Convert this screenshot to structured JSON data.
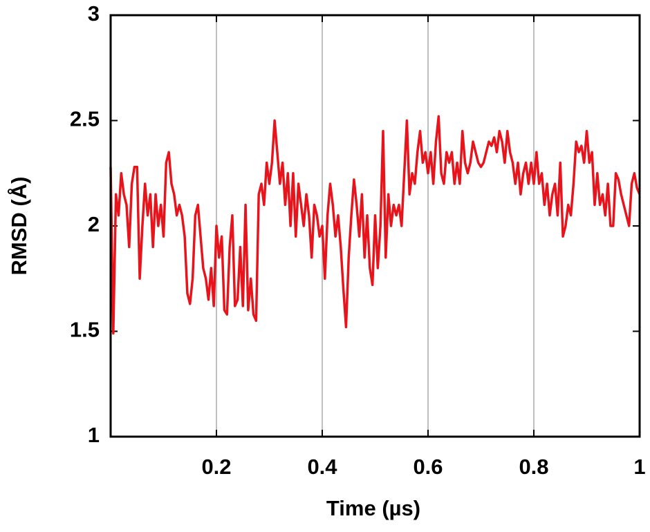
{
  "chart_data": {
    "type": "line",
    "x_label": "Time (µs)",
    "y_label": "RMSD (Å)",
    "xlim": [
      0,
      1
    ],
    "ylim": [
      1,
      3
    ],
    "xticks": [
      0.2,
      0.4,
      0.6,
      0.8,
      1
    ],
    "yticks": [
      1,
      1.5,
      2,
      2.5,
      3
    ],
    "grid": "x",
    "x": [
      0,
      0.005,
      0.01,
      0.015,
      0.02,
      0.025,
      0.03,
      0.035,
      0.04,
      0.045,
      0.05,
      0.055,
      0.06,
      0.065,
      0.07,
      0.075,
      0.08,
      0.085,
      0.09,
      0.095,
      0.1,
      0.105,
      0.11,
      0.115,
      0.12,
      0.125,
      0.13,
      0.135,
      0.14,
      0.145,
      0.15,
      0.155,
      0.16,
      0.165,
      0.17,
      0.175,
      0.18,
      0.185,
      0.19,
      0.195,
      0.2,
      0.205,
      0.21,
      0.215,
      0.22,
      0.225,
      0.23,
      0.235,
      0.24,
      0.245,
      0.25,
      0.255,
      0.26,
      0.265,
      0.27,
      0.275,
      0.28,
      0.285,
      0.29,
      0.295,
      0.3,
      0.305,
      0.31,
      0.315,
      0.32,
      0.325,
      0.33,
      0.335,
      0.34,
      0.345,
      0.35,
      0.355,
      0.36,
      0.365,
      0.37,
      0.375,
      0.38,
      0.385,
      0.39,
      0.395,
      0.4,
      0.405,
      0.41,
      0.415,
      0.42,
      0.425,
      0.43,
      0.435,
      0.44,
      0.445,
      0.45,
      0.455,
      0.46,
      0.465,
      0.47,
      0.475,
      0.48,
      0.485,
      0.49,
      0.495,
      0.5,
      0.505,
      0.51,
      0.515,
      0.52,
      0.525,
      0.53,
      0.535,
      0.54,
      0.545,
      0.55,
      0.555,
      0.56,
      0.565,
      0.57,
      0.575,
      0.58,
      0.585,
      0.59,
      0.595,
      0.6,
      0.605,
      0.61,
      0.615,
      0.62,
      0.625,
      0.63,
      0.635,
      0.64,
      0.645,
      0.65,
      0.655,
      0.66,
      0.665,
      0.67,
      0.675,
      0.68,
      0.685,
      0.69,
      0.695,
      0.7,
      0.705,
      0.71,
      0.715,
      0.72,
      0.725,
      0.73,
      0.735,
      0.74,
      0.745,
      0.75,
      0.755,
      0.76,
      0.765,
      0.77,
      0.775,
      0.78,
      0.785,
      0.79,
      0.795,
      0.8,
      0.805,
      0.81,
      0.815,
      0.82,
      0.825,
      0.83,
      0.835,
      0.84,
      0.845,
      0.85,
      0.855,
      0.86,
      0.865,
      0.87,
      0.875,
      0.88,
      0.885,
      0.89,
      0.895,
      0.9,
      0.905,
      0.91,
      0.915,
      0.92,
      0.925,
      0.93,
      0.935,
      0.94,
      0.945,
      0.95,
      0.955,
      0.96,
      0.965,
      0.97,
      0.975,
      0.98,
      0.985,
      0.99,
      0.995,
      1
    ],
    "series": [
      {
        "color": "#e8141c",
        "values": [
          2.28,
          1.49,
          2.15,
          2.05,
          2.25,
          2.15,
          2.1,
          1.9,
          2.2,
          2.28,
          2.28,
          1.75,
          2.0,
          2.2,
          2.05,
          2.15,
          1.9,
          2.15,
          2.0,
          2.1,
          1.95,
          2.3,
          2.35,
          2.2,
          2.15,
          2.05,
          2.1,
          2.05,
          1.95,
          1.68,
          1.63,
          1.75,
          2.05,
          2.1,
          1.95,
          1.8,
          1.75,
          1.65,
          1.8,
          1.62,
          2.0,
          1.85,
          1.95,
          1.6,
          1.58,
          1.9,
          2.05,
          1.62,
          1.65,
          1.9,
          1.62,
          2.1,
          1.6,
          1.75,
          1.58,
          1.55,
          2.15,
          2.2,
          2.1,
          2.3,
          2.2,
          2.3,
          2.5,
          2.35,
          2.2,
          2.3,
          2.1,
          2.25,
          2.0,
          2.25,
          1.95,
          2.2,
          2.1,
          2.0,
          2.15,
          2.05,
          1.85,
          2.1,
          2.05,
          1.95,
          2.0,
          1.75,
          2.05,
          2.2,
          2.1,
          1.95,
          2.05,
          1.9,
          1.7,
          1.52,
          1.85,
          2.05,
          2.22,
          2.1,
          1.95,
          2.15,
          1.85,
          2.05,
          1.8,
          1.72,
          2.05,
          1.8,
          2.0,
          2.45,
          1.85,
          2.15,
          2.0,
          2.1,
          2.05,
          2.1,
          2.0,
          2.25,
          2.5,
          2.15,
          2.25,
          2.2,
          2.35,
          2.45,
          2.3,
          2.35,
          2.25,
          2.35,
          2.2,
          2.4,
          2.52,
          2.25,
          2.2,
          2.35,
          2.3,
          2.35,
          2.2,
          2.3,
          2.2,
          2.45,
          2.3,
          2.25,
          2.3,
          2.4,
          2.35,
          2.3,
          2.28,
          2.3,
          2.35,
          2.4,
          2.38,
          2.42,
          2.35,
          2.45,
          2.4,
          2.3,
          2.45,
          2.35,
          2.3,
          2.2,
          2.3,
          2.15,
          2.25,
          2.3,
          2.2,
          2.3,
          2.2,
          2.35,
          2.2,
          2.25,
          2.1,
          2.2,
          2.05,
          2.15,
          2.2,
          2.05,
          2.3,
          1.95,
          2.0,
          2.1,
          2.05,
          2.2,
          2.4,
          2.35,
          2.38,
          2.3,
          2.45,
          2.3,
          2.35,
          2.1,
          2.25,
          2.1,
          2.15,
          2.05,
          2.2,
          2.0,
          2.0,
          2.25,
          2.22,
          2.15,
          2.1,
          2.05,
          2.0,
          2.2,
          2.25,
          2.18,
          2.15
        ]
      }
    ]
  }
}
